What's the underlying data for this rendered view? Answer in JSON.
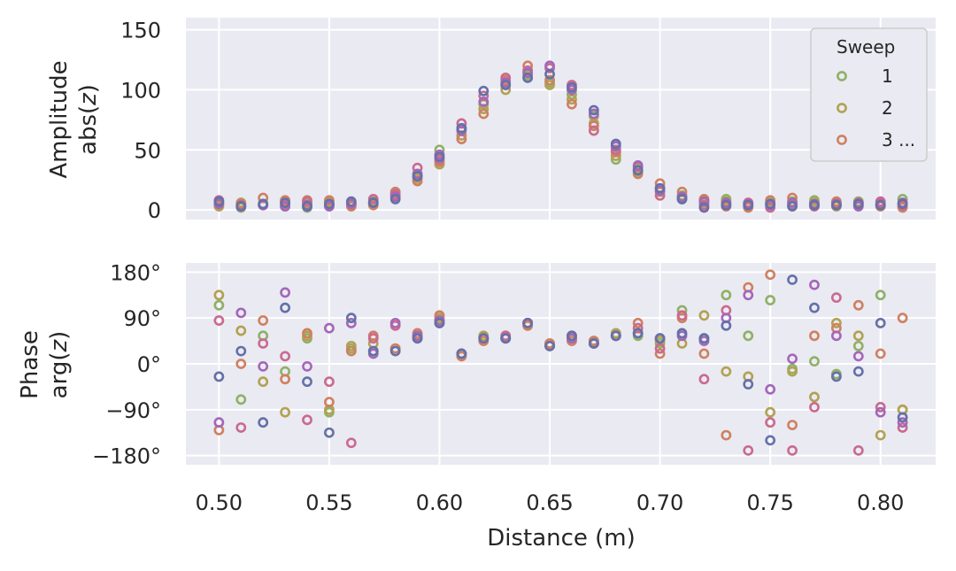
{
  "chart_data": [
    {
      "type": "scatter",
      "ylabel_line1": "Amplitude",
      "ylabel_line2": "abs(z)",
      "ylim": [
        -8,
        160
      ],
      "yticks": [
        0,
        50,
        100,
        150
      ],
      "ytick_labels": [
        "0",
        "50",
        "100",
        "150"
      ],
      "xlim": [
        0.485,
        0.825
      ],
      "grid": true,
      "legend": {
        "title": "Sweep",
        "placement": "top-right",
        "entries": [
          {
            "label": "1",
            "color": "#8fb066"
          },
          {
            "label": "2",
            "color": "#b2a152"
          },
          {
            "label": "3 ...",
            "color": "#cf8060"
          }
        ]
      },
      "series": [
        {
          "name": "1",
          "color": "#8fb066",
          "x": [
            0.5,
            0.51,
            0.52,
            0.53,
            0.54,
            0.55,
            0.56,
            0.57,
            0.58,
            0.59,
            0.6,
            0.61,
            0.62,
            0.63,
            0.64,
            0.65,
            0.66,
            0.67,
            0.68,
            0.69,
            0.7,
            0.71,
            0.72,
            0.73,
            0.74,
            0.75,
            0.76,
            0.77,
            0.78,
            0.79,
            0.8,
            0.81
          ],
          "y": [
            4,
            2,
            5,
            3,
            2,
            4,
            5,
            7,
            14,
            28,
            50,
            68,
            88,
            104,
            112,
            106,
            96,
            78,
            42,
            32,
            18,
            12,
            8,
            9,
            5,
            6,
            7,
            8,
            5,
            7,
            4,
            9
          ]
        },
        {
          "name": "2",
          "color": "#b2a152",
          "x": [
            0.5,
            0.51,
            0.52,
            0.53,
            0.54,
            0.55,
            0.56,
            0.57,
            0.58,
            0.59,
            0.6,
            0.61,
            0.62,
            0.63,
            0.64,
            0.65,
            0.66,
            0.67,
            0.68,
            0.69,
            0.7,
            0.71,
            0.72,
            0.73,
            0.74,
            0.75,
            0.76,
            0.77,
            0.78,
            0.79,
            0.8,
            0.81
          ],
          "y": [
            3,
            6,
            4,
            6,
            5,
            7,
            4,
            5,
            12,
            26,
            38,
            62,
            84,
            100,
            110,
            104,
            92,
            72,
            45,
            34,
            15,
            9,
            6,
            7,
            3,
            5,
            4,
            6,
            3,
            4,
            5,
            3
          ]
        },
        {
          "name": "3",
          "color": "#cf8060",
          "x": [
            0.5,
            0.51,
            0.52,
            0.53,
            0.54,
            0.55,
            0.56,
            0.57,
            0.58,
            0.59,
            0.6,
            0.61,
            0.62,
            0.63,
            0.64,
            0.65,
            0.66,
            0.67,
            0.68,
            0.69,
            0.7,
            0.71,
            0.72,
            0.73,
            0.74,
            0.75,
            0.76,
            0.77,
            0.78,
            0.79,
            0.8,
            0.81
          ],
          "y": [
            6,
            5,
            10,
            8,
            8,
            8,
            3,
            4,
            15,
            24,
            40,
            59,
            80,
            108,
            120,
            108,
            88,
            70,
            48,
            30,
            22,
            15,
            9,
            3,
            2,
            8,
            10,
            4,
            7,
            5,
            3,
            2
          ]
        },
        {
          "name": "",
          "color": "#c96a8e",
          "x": [
            0.5,
            0.51,
            0.52,
            0.53,
            0.54,
            0.55,
            0.56,
            0.57,
            0.58,
            0.59,
            0.6,
            0.61,
            0.62,
            0.63,
            0.64,
            0.65,
            0.66,
            0.67,
            0.68,
            0.69,
            0.7,
            0.71,
            0.72,
            0.73,
            0.74,
            0.75,
            0.76,
            0.77,
            0.78,
            0.79,
            0.8,
            0.81
          ],
          "y": [
            8,
            4,
            4,
            5,
            7,
            5,
            6,
            9,
            13,
            35,
            42,
            72,
            95,
            110,
            116,
            118,
            104,
            66,
            50,
            36,
            12,
            10,
            4,
            5,
            6,
            2,
            4,
            3,
            4,
            6,
            7,
            4
          ]
        },
        {
          "name": "",
          "color": "#a466b8",
          "x": [
            0.5,
            0.51,
            0.52,
            0.53,
            0.54,
            0.55,
            0.56,
            0.57,
            0.58,
            0.59,
            0.6,
            0.61,
            0.62,
            0.63,
            0.64,
            0.65,
            0.66,
            0.67,
            0.68,
            0.69,
            0.7,
            0.71,
            0.72,
            0.73,
            0.74,
            0.75,
            0.76,
            0.77,
            0.78,
            0.79,
            0.8,
            0.81
          ],
          "y": [
            5,
            3,
            4,
            3,
            4,
            3,
            5,
            6,
            11,
            30,
            46,
            66,
            90,
            106,
            114,
            120,
            100,
            80,
            53,
            37,
            16,
            11,
            7,
            6,
            5,
            4,
            6,
            5,
            5,
            3,
            5,
            6
          ]
        },
        {
          "name": "",
          "color": "#6470a8",
          "x": [
            0.5,
            0.51,
            0.52,
            0.53,
            0.54,
            0.55,
            0.56,
            0.57,
            0.58,
            0.59,
            0.6,
            0.61,
            0.62,
            0.63,
            0.64,
            0.65,
            0.66,
            0.67,
            0.68,
            0.69,
            0.7,
            0.71,
            0.72,
            0.73,
            0.74,
            0.75,
            0.76,
            0.77,
            0.78,
            0.79,
            0.8,
            0.81
          ],
          "y": [
            7,
            3,
            5,
            6,
            3,
            5,
            7,
            6,
            9,
            28,
            44,
            68,
            99,
            104,
            110,
            113,
            102,
            83,
            55,
            33,
            18,
            9,
            2,
            4,
            4,
            5,
            3,
            4,
            4,
            5,
            4,
            5
          ]
        }
      ]
    },
    {
      "type": "scatter",
      "xlabel": "Distance (m)",
      "ylabel_line1": "Phase",
      "ylabel_line2": "arg(z)",
      "ylim": [
        -198,
        198
      ],
      "yticks": [
        -180,
        -90,
        0,
        90,
        180
      ],
      "ytick_labels": [
        "−180°",
        "−90°",
        "0°",
        "90°",
        "180°"
      ],
      "xlim": [
        0.485,
        0.825
      ],
      "xticks": [
        0.5,
        0.55,
        0.6,
        0.65,
        0.7,
        0.75,
        0.8
      ],
      "xtick_labels": [
        "0.50",
        "0.55",
        "0.60",
        "0.65",
        "0.70",
        "0.75",
        "0.80"
      ],
      "grid": true,
      "series": [
        {
          "name": "1",
          "color": "#8fb066",
          "x": [
            0.5,
            0.51,
            0.52,
            0.53,
            0.54,
            0.55,
            0.56,
            0.57,
            0.58,
            0.59,
            0.6,
            0.61,
            0.62,
            0.63,
            0.64,
            0.65,
            0.66,
            0.67,
            0.68,
            0.69,
            0.7,
            0.71,
            0.72,
            0.73,
            0.74,
            0.75,
            0.76,
            0.77,
            0.78,
            0.79,
            0.8,
            0.81
          ],
          "y": [
            115,
            -70,
            55,
            -15,
            50,
            -95,
            30,
            25,
            30,
            55,
            85,
            15,
            50,
            50,
            80,
            35,
            55,
            40,
            55,
            55,
            40,
            105,
            50,
            135,
            55,
            125,
            -10,
            5,
            -20,
            35,
            135,
            -90
          ]
        },
        {
          "name": "2",
          "color": "#b2a152",
          "x": [
            0.5,
            0.51,
            0.52,
            0.53,
            0.54,
            0.55,
            0.56,
            0.57,
            0.58,
            0.59,
            0.6,
            0.61,
            0.62,
            0.63,
            0.64,
            0.65,
            0.66,
            0.67,
            0.68,
            0.69,
            0.7,
            0.71,
            0.72,
            0.73,
            0.74,
            0.75,
            0.76,
            0.77,
            0.78,
            0.79,
            0.8,
            0.81
          ],
          "y": [
            135,
            65,
            -35,
            -95,
            55,
            -90,
            35,
            40,
            30,
            55,
            90,
            20,
            55,
            50,
            75,
            40,
            55,
            45,
            60,
            60,
            45,
            40,
            95,
            -15,
            -25,
            -95,
            -15,
            -65,
            80,
            55,
            -140,
            -90
          ]
        },
        {
          "name": "3",
          "color": "#cf8060",
          "x": [
            0.5,
            0.51,
            0.52,
            0.53,
            0.54,
            0.55,
            0.56,
            0.57,
            0.58,
            0.59,
            0.6,
            0.61,
            0.62,
            0.63,
            0.64,
            0.65,
            0.66,
            0.67,
            0.68,
            0.69,
            0.7,
            0.71,
            0.72,
            0.73,
            0.74,
            0.75,
            0.76,
            0.77,
            0.78,
            0.79,
            0.8,
            0.81
          ],
          "y": [
            -130,
            0,
            85,
            -30,
            60,
            -75,
            25,
            55,
            30,
            60,
            95,
            15,
            45,
            55,
            75,
            40,
            45,
            45,
            55,
            80,
            20,
            90,
            20,
            -140,
            150,
            175,
            -120,
            55,
            70,
            115,
            20,
            90
          ]
        },
        {
          "name": "",
          "color": "#c96a8e",
          "x": [
            0.5,
            0.51,
            0.52,
            0.53,
            0.54,
            0.55,
            0.56,
            0.57,
            0.58,
            0.59,
            0.6,
            0.61,
            0.62,
            0.63,
            0.64,
            0.65,
            0.66,
            0.67,
            0.68,
            0.69,
            0.7,
            0.71,
            0.72,
            0.73,
            0.74,
            0.75,
            0.76,
            0.77,
            0.78,
            0.79,
            0.8,
            0.81
          ],
          "y": [
            85,
            -125,
            40,
            15,
            -110,
            -35,
            -155,
            50,
            75,
            50,
            80,
            20,
            50,
            55,
            80,
            35,
            50,
            40,
            55,
            70,
            30,
            95,
            -30,
            105,
            -170,
            -115,
            -170,
            -85,
            130,
            -170,
            -85,
            -125
          ]
        },
        {
          "name": "",
          "color": "#a466b8",
          "x": [
            0.5,
            0.51,
            0.52,
            0.53,
            0.54,
            0.55,
            0.56,
            0.57,
            0.58,
            0.59,
            0.6,
            0.61,
            0.62,
            0.63,
            0.64,
            0.65,
            0.66,
            0.67,
            0.68,
            0.69,
            0.7,
            0.71,
            0.72,
            0.73,
            0.74,
            0.75,
            0.76,
            0.77,
            0.78,
            0.79,
            0.8,
            0.81
          ],
          "y": [
            -115,
            100,
            -5,
            140,
            -5,
            70,
            80,
            20,
            80,
            55,
            85,
            20,
            50,
            50,
            80,
            35,
            50,
            40,
            55,
            60,
            50,
            55,
            45,
            90,
            135,
            -50,
            10,
            155,
            55,
            15,
            -95,
            -115
          ]
        },
        {
          "name": "",
          "color": "#6470a8",
          "x": [
            0.5,
            0.51,
            0.52,
            0.53,
            0.54,
            0.55,
            0.56,
            0.57,
            0.58,
            0.59,
            0.6,
            0.61,
            0.62,
            0.63,
            0.64,
            0.65,
            0.66,
            0.67,
            0.68,
            0.69,
            0.7,
            0.71,
            0.72,
            0.73,
            0.74,
            0.75,
            0.76,
            0.77,
            0.78,
            0.79,
            0.8,
            0.81
          ],
          "y": [
            -25,
            25,
            -115,
            110,
            -35,
            -135,
            90,
            25,
            25,
            50,
            80,
            20,
            50,
            50,
            80,
            35,
            55,
            40,
            55,
            60,
            50,
            60,
            50,
            75,
            -40,
            -150,
            165,
            110,
            -25,
            -15,
            80,
            -105
          ]
        }
      ]
    }
  ]
}
